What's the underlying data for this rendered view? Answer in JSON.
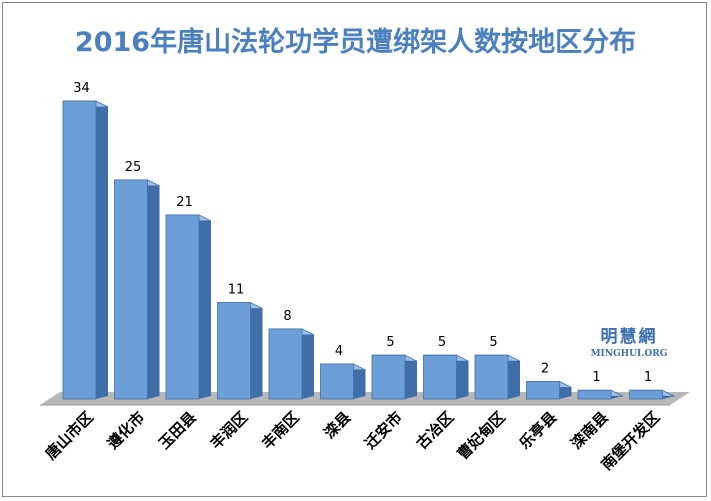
{
  "chart_data": {
    "type": "bar",
    "title": "2016年唐山法轮功学员遭绑架人数按地区分布",
    "categories": [
      "唐山市区",
      "遵化市",
      "玉田县",
      "丰润区",
      "丰南区",
      "滦县",
      "迁安市",
      "古冶区",
      "曹妃甸区",
      "乐亭县",
      "滦南县",
      "南堡开发区"
    ],
    "values": [
      34,
      25,
      21,
      11,
      8,
      4,
      5,
      5,
      5,
      2,
      1,
      1
    ],
    "xlabel": "",
    "ylabel": "",
    "ylim": [
      0,
      36
    ],
    "grid": false,
    "legend": "none",
    "style": "3d-column"
  },
  "watermark": {
    "cn": "明慧網",
    "en": "MINGHUI.ORG"
  },
  "colors": {
    "title": "#4a7fc0",
    "bar_front": "#6c9fd8",
    "bar_side": "#3f6ea8",
    "bar_top": "#9cc0ea",
    "floor": "#b8b8b8"
  }
}
